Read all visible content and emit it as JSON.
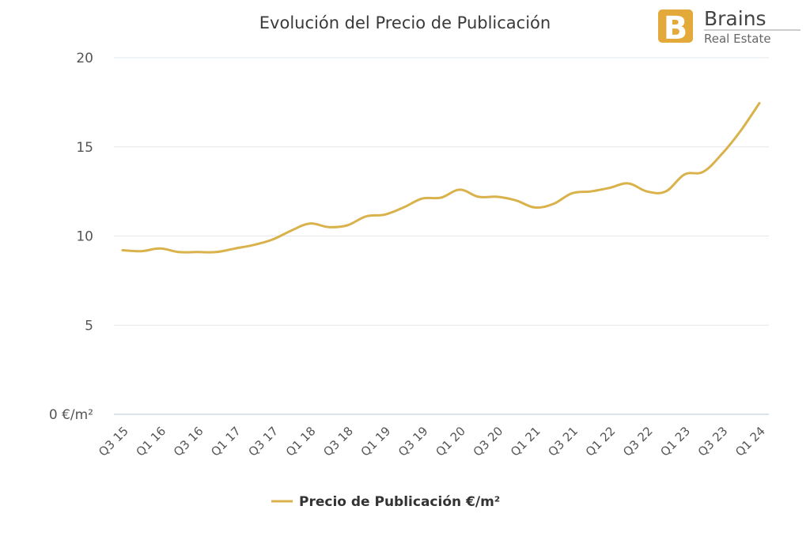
{
  "logo": {
    "brand": "Brains",
    "sub": "Real Estate",
    "letter": "B",
    "color": "#E3A93A"
  },
  "chart_data": {
    "type": "line",
    "title": "Evolución del Precio de Publicación",
    "xlabel": "",
    "ylabel": "",
    "ylim": [
      0,
      20
    ],
    "yticks": [
      0,
      5,
      10,
      15,
      20
    ],
    "ytick_labels": [
      "0 €/m²",
      "5",
      "10",
      "15",
      "20"
    ],
    "grid": true,
    "legend_position": "bottom-center",
    "color": "#D9B24C",
    "categories": [
      "Q3 15",
      "Q4 15",
      "Q1 16",
      "Q2 16",
      "Q3 16",
      "Q4 16",
      "Q1 17",
      "Q2 17",
      "Q3 17",
      "Q4 17",
      "Q1 18",
      "Q2 18",
      "Q3 18",
      "Q4 18",
      "Q1 19",
      "Q2 19",
      "Q3 19",
      "Q4 19",
      "Q1 20",
      "Q2 20",
      "Q3 20",
      "Q4 20",
      "Q1 21",
      "Q2 21",
      "Q3 21",
      "Q4 21",
      "Q1 22",
      "Q2 22",
      "Q3 22",
      "Q4 22",
      "Q1 23",
      "Q2 23",
      "Q3 23",
      "Q4 23",
      "Q1 24"
    ],
    "tick_labels": [
      "Q3 15",
      "Q1 16",
      "Q3 16",
      "Q1 17",
      "Q3 17",
      "Q1 18",
      "Q3 18",
      "Q1 19",
      "Q3 19",
      "Q1 20",
      "Q3 20",
      "Q1 21",
      "Q3 21",
      "Q1 22",
      "Q3 22",
      "Q1 23",
      "Q3 23",
      "Q1 24"
    ],
    "series": [
      {
        "name": "Precio de Publicación €/m²",
        "values": [
          9.2,
          9.15,
          9.3,
          9.1,
          9.1,
          9.1,
          9.3,
          9.5,
          9.8,
          10.3,
          10.7,
          10.5,
          10.6,
          11.1,
          11.2,
          11.6,
          12.1,
          12.15,
          12.6,
          12.2,
          12.2,
          12.0,
          11.6,
          11.8,
          12.4,
          12.5,
          12.7,
          12.95,
          12.5,
          12.5,
          13.45,
          13.6,
          14.6,
          15.9,
          17.45
        ]
      }
    ]
  }
}
